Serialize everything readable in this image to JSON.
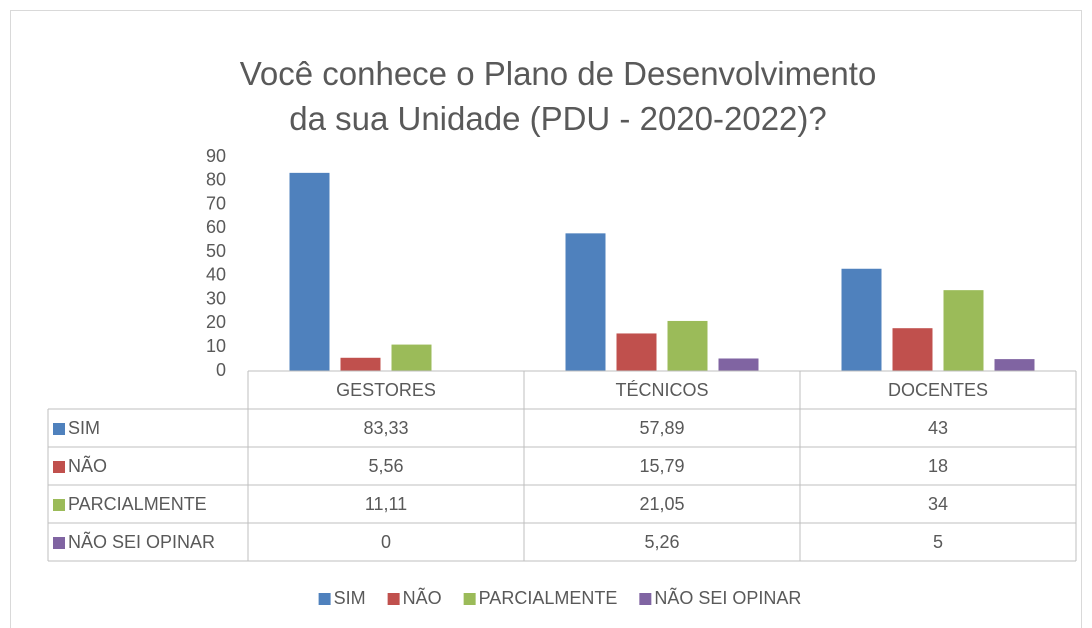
{
  "chart_data": {
    "type": "bar",
    "title": "Você conhece o Plano de Desenvolvimento da sua Unidade (PDU - 2020-2022)?",
    "categories": [
      "GESTORES",
      "TÉCNICOS",
      "DOCENTES"
    ],
    "series": [
      {
        "name": "SIM",
        "color": "#4f81bd",
        "values": [
          83.33,
          57.89,
          43
        ],
        "value_labels": [
          "83,33",
          "57,89",
          "43"
        ]
      },
      {
        "name": "NÃO",
        "color": "#c0504d",
        "values": [
          5.56,
          15.79,
          18
        ],
        "value_labels": [
          "5,56",
          "15,79",
          "18"
        ]
      },
      {
        "name": "PARCIALMENTE",
        "color": "#9bbb59",
        "values": [
          11.11,
          21.05,
          34
        ],
        "value_labels": [
          "11,11",
          "21,05",
          "34"
        ]
      },
      {
        "name": "NÃO SEI OPINAR",
        "color": "#8064a2",
        "values": [
          0,
          5.26,
          5
        ],
        "value_labels": [
          "0",
          "5,26",
          "5"
        ]
      }
    ],
    "ylim": [
      0,
      90
    ],
    "yticks": [
      0,
      10,
      20,
      30,
      40,
      50,
      60,
      70,
      80,
      90
    ],
    "data_table": true,
    "legend": "bottom"
  }
}
